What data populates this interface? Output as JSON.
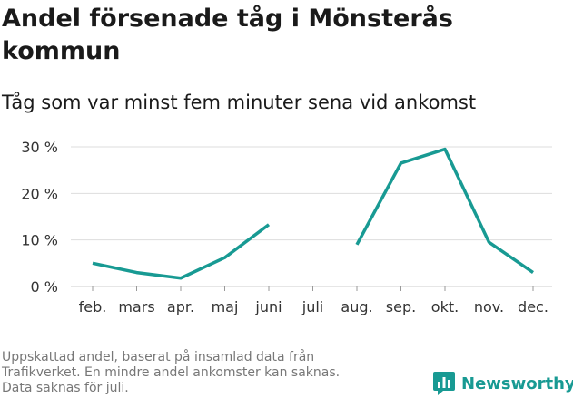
{
  "title": "Andel försenade tåg i Mönsterås kommun",
  "subtitle": "Tåg som var minst fem minuter sena vid ankomst",
  "footnote": [
    "Uppskattad andel, baserat på insamlad data från",
    "Trafikverket. En mindre andel ankomster kan saknas.",
    "Data saknas för juli."
  ],
  "brand": {
    "name": "Newsworthy",
    "icon": "bar-chart-logo-icon"
  },
  "colors": {
    "line": "#189a93",
    "grid": "#dddddd",
    "brand": "#189a93"
  },
  "chart_data": {
    "type": "line",
    "categories": [
      "feb.",
      "mars",
      "apr.",
      "maj",
      "juni",
      "juli",
      "aug.",
      "sep.",
      "okt.",
      "nov.",
      "dec."
    ],
    "series": [
      {
        "values": [
          5,
          3,
          1.8,
          6.2,
          13.3,
          null,
          9,
          26.5,
          29.5,
          9.5,
          3
        ]
      }
    ],
    "yticks": [
      "0 %",
      "10 %",
      "20 %",
      "30 %"
    ],
    "ylim": [
      0,
      30
    ],
    "grid": true,
    "xlabel": "",
    "ylabel": ""
  }
}
